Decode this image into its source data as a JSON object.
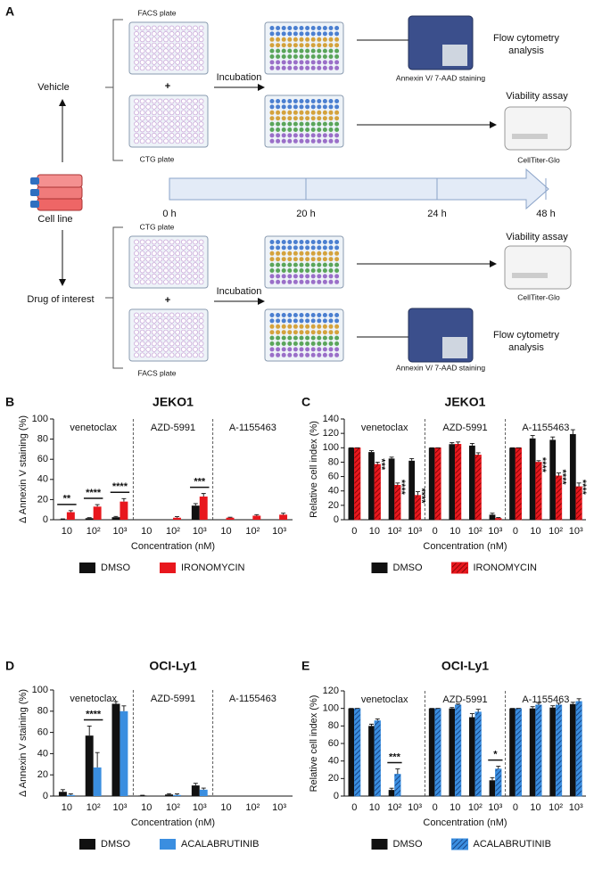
{
  "schematic": {
    "label": "A",
    "cell_line": "Cell line",
    "vehicle": "Vehicle",
    "drug": "Drug of interest",
    "top": {
      "plate1": "FACS plate",
      "plus": "+",
      "plate2": "CTG plate",
      "incubation": "Incubation",
      "flow": [
        "Flow cytometry",
        "analysis"
      ],
      "staining": "Annexin V/ 7-AAD staining",
      "viability": "Viability assay",
      "ctg": "CellTiter-Glo"
    },
    "bottom": {
      "plate1": "CTG plate",
      "plus": "+",
      "plate2": "FACS plate",
      "incubation": "Incubation",
      "flow": [
        "Flow cytometry",
        "analysis"
      ],
      "staining": "Annexin V/ 7-AAD staining",
      "viability": "Viability assay",
      "ctg": "CellTiter-Glo"
    },
    "timeline": [
      "0 h",
      "20 h",
      "24 h",
      "48 h"
    ]
  },
  "chart_data": [
    {
      "type": "bar",
      "panel": "B",
      "title": "JEKO1",
      "y_label": "Δ Annexin V staining (%)",
      "x_label": "Concentration (nM)",
      "groups": [
        "venetoclax",
        "AZD-5991",
        "A-1155463"
      ],
      "categories": [
        "10",
        "10²",
        "10³",
        "10",
        "10²",
        "10³",
        "10",
        "10²",
        "10³"
      ],
      "ylim": [
        0,
        100
      ],
      "yticks": [
        0,
        20,
        40,
        60,
        80,
        100
      ],
      "significance_orientation": "horizontal",
      "series": [
        {
          "name": "DMSO",
          "color": "#111111",
          "hatch": false,
          "values": [
            0.5,
            1.5,
            2.5,
            0,
            0,
            14,
            0,
            0,
            0
          ],
          "errors": [
            0.3,
            0.5,
            0.8,
            0,
            0,
            2,
            0,
            0,
            0
          ]
        },
        {
          "name": "IRONOMYCIN",
          "color": "#e8171d",
          "hatch": false,
          "values": [
            7.5,
            13,
            18,
            0,
            2,
            23,
            2,
            4,
            5
          ],
          "errors": [
            1.5,
            2,
            3,
            0,
            1,
            3,
            0.5,
            1,
            1.5
          ]
        }
      ],
      "significance": [
        "**",
        "****",
        "****",
        null,
        null,
        "***",
        null,
        null,
        null
      ]
    },
    {
      "type": "bar",
      "panel": "C",
      "title": "JEKO1",
      "y_label": "Relative cell index (%)",
      "x_label": "Concentration (nM)",
      "groups": [
        "venetoclax",
        "AZD-5991",
        "A-1155463"
      ],
      "categories": [
        "0",
        "10",
        "10²",
        "10³",
        "0",
        "10",
        "10²",
        "10³",
        "0",
        "10",
        "10²",
        "10³"
      ],
      "ylim": [
        0,
        140
      ],
      "yticks": [
        0,
        20,
        40,
        60,
        80,
        100,
        120,
        140
      ],
      "significance_orientation": "vertical",
      "series": [
        {
          "name": "DMSO",
          "color": "#111111",
          "hatch": false,
          "values": [
            100,
            94,
            85,
            82,
            100,
            105,
            103,
            7,
            100,
            113,
            111,
            119
          ],
          "errors": [
            0,
            2,
            2,
            3,
            0,
            2,
            3,
            2,
            0,
            4,
            4,
            6
          ]
        },
        {
          "name": "IRONOMYCIN",
          "color": "#e8171d",
          "hatch": true,
          "values": [
            100,
            77,
            48,
            34,
            100,
            105,
            90,
            2,
            100,
            80,
            61,
            46
          ],
          "errors": [
            0,
            3,
            3,
            5,
            0,
            3,
            3,
            1,
            0,
            2,
            4,
            5
          ]
        }
      ],
      "significance": [
        null,
        "***",
        "****",
        "****",
        null,
        null,
        null,
        null,
        null,
        "****",
        "****",
        "****"
      ]
    },
    {
      "type": "bar",
      "panel": "D",
      "title": "OCI-Ly1",
      "y_label": "Δ Annexin V staining (%)",
      "x_label": "Concentration (nM)",
      "groups": [
        "venetoclax",
        "AZD-5991",
        "A-1155463"
      ],
      "categories": [
        "10",
        "10²",
        "10³",
        "10",
        "10²",
        "10³",
        "10",
        "10²",
        "10³"
      ],
      "ylim": [
        0,
        100
      ],
      "yticks": [
        0,
        20,
        40,
        60,
        80,
        100
      ],
      "significance_orientation": "horizontal",
      "series": [
        {
          "name": "DMSO",
          "color": "#111111",
          "hatch": false,
          "values": [
            4,
            57,
            87,
            0.5,
            1.5,
            10,
            0,
            0,
            0
          ],
          "errors": [
            2,
            9,
            2,
            0.3,
            0.8,
            2,
            0,
            0,
            0
          ]
        },
        {
          "name": "ACALABRUTINIB",
          "color": "#3a8ee0",
          "hatch": false,
          "values": [
            1,
            27,
            80,
            0,
            1,
            6,
            0,
            0,
            0
          ],
          "errors": [
            1,
            14,
            5,
            0,
            1,
            1.5,
            0,
            0,
            0
          ]
        }
      ],
      "significance": [
        null,
        "****",
        null,
        null,
        null,
        null,
        null,
        null,
        null
      ]
    },
    {
      "type": "bar",
      "panel": "E",
      "title": "OCI-Ly1",
      "y_label": "Relative cell index (%)",
      "x_label": "Concentration (nM)",
      "groups": [
        "venetoclax",
        "AZD-5991",
        "A-1155463"
      ],
      "categories": [
        "0",
        "10",
        "10²",
        "10³",
        "0",
        "10",
        "10²",
        "10³",
        "0",
        "10",
        "10²",
        "10³"
      ],
      "ylim": [
        0,
        120
      ],
      "yticks": [
        0,
        20,
        40,
        60,
        80,
        100,
        120
      ],
      "significance_orientation": "horizontal",
      "series": [
        {
          "name": "DMSO",
          "color": "#111111",
          "hatch": false,
          "values": [
            100,
            80,
            7,
            0,
            100,
            100,
            90,
            18,
            100,
            100,
            101,
            105
          ],
          "errors": [
            0,
            2,
            2,
            0,
            0,
            1,
            4,
            3,
            0,
            2,
            2,
            2
          ]
        },
        {
          "name": "ACALABRUTINIB",
          "color": "#3a8ee0",
          "hatch": true,
          "values": [
            100,
            86,
            25,
            0,
            100,
            104,
            96,
            31,
            100,
            104,
            104,
            108
          ],
          "errors": [
            0,
            2,
            6,
            0,
            0,
            1,
            3,
            3,
            0,
            2,
            2,
            3
          ]
        }
      ],
      "significance": [
        null,
        null,
        "***",
        null,
        null,
        null,
        null,
        "*",
        null,
        null,
        null,
        null
      ]
    }
  ]
}
